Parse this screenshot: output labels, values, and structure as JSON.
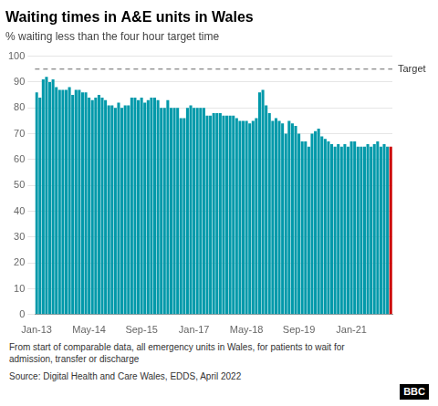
{
  "chart_data": {
    "type": "bar",
    "title": "Waiting times in A&E units in Wales",
    "subtitle": "% waiting less than the four hour target time",
    "footnote": "From start of comparable data, all emergency units in Wales, for patients to wait for\nadmission, transfer or discharge",
    "source": "Source: Digital Health and Care Wales, EDDS, April 2022",
    "logo": "BBC",
    "annotations": [
      {
        "text": "Target",
        "y": 95,
        "line_style": "dashed"
      }
    ],
    "categories": [
      "Jan-13",
      null,
      null,
      null,
      null,
      null,
      null,
      null,
      null,
      null,
      null,
      null,
      null,
      null,
      null,
      null,
      "May-14",
      null,
      null,
      null,
      null,
      null,
      null,
      null,
      null,
      null,
      null,
      null,
      null,
      null,
      null,
      null,
      "Sep-15",
      null,
      null,
      null,
      null,
      null,
      null,
      null,
      null,
      null,
      null,
      null,
      null,
      null,
      null,
      null,
      "Jan-17",
      null,
      null,
      null,
      null,
      null,
      null,
      null,
      null,
      null,
      null,
      null,
      null,
      null,
      null,
      null,
      "May-18",
      null,
      null,
      null,
      null,
      null,
      null,
      null,
      null,
      null,
      null,
      null,
      null,
      null,
      null,
      null,
      "Sep-19",
      null,
      null,
      null,
      null,
      null,
      null,
      null,
      null,
      null,
      null,
      null,
      null,
      null,
      null,
      null,
      "Jan-21",
      null,
      null,
      null,
      null,
      null,
      null,
      null,
      null,
      null,
      null,
      null,
      null
    ],
    "values": [
      86,
      84,
      91,
      92,
      90,
      91,
      88,
      87,
      87,
      87,
      88,
      85,
      87,
      87,
      86,
      86,
      84,
      83,
      84,
      85,
      84,
      83,
      81,
      81,
      80,
      82,
      80,
      81,
      81,
      84,
      84,
      83,
      84,
      82,
      83,
      84,
      84,
      83,
      80,
      80,
      83,
      80,
      80,
      80,
      76,
      76,
      80,
      81,
      80,
      80,
      80,
      80,
      77,
      77,
      78,
      78,
      78,
      77,
      77,
      77,
      77,
      76,
      75,
      75,
      75,
      74,
      75,
      76,
      86,
      87,
      81,
      78,
      75,
      76,
      75,
      74,
      70,
      75,
      74,
      73,
      70,
      67,
      67,
      65,
      70,
      71,
      72,
      69,
      68,
      67,
      66,
      65,
      66,
      65,
      66,
      65,
      67,
      67,
      65,
      65,
      65,
      66,
      65,
      66,
      67,
      65,
      66,
      65,
      65
    ],
    "colors": [
      "#0099AA",
      "#0099AA",
      "#0099AA",
      "#0099AA",
      "#0099AA",
      "#0099AA",
      "#0099AA",
      "#0099AA",
      "#0099AA",
      "#0099AA",
      "#0099AA",
      "#0099AA",
      "#0099AA",
      "#0099AA",
      "#0099AA",
      "#0099AA",
      "#0099AA",
      "#0099AA",
      "#0099AA",
      "#0099AA",
      "#0099AA",
      "#0099AA",
      "#0099AA",
      "#0099AA",
      "#0099AA",
      "#0099AA",
      "#0099AA",
      "#0099AA",
      "#0099AA",
      "#0099AA",
      "#0099AA",
      "#0099AA",
      "#0099AA",
      "#0099AA",
      "#0099AA",
      "#0099AA",
      "#0099AA",
      "#0099AA",
      "#0099AA",
      "#0099AA",
      "#0099AA",
      "#0099AA",
      "#0099AA",
      "#0099AA",
      "#0099AA",
      "#0099AA",
      "#0099AA",
      "#0099AA",
      "#0099AA",
      "#0099AA",
      "#0099AA",
      "#0099AA",
      "#0099AA",
      "#0099AA",
      "#0099AA",
      "#0099AA",
      "#0099AA",
      "#0099AA",
      "#0099AA",
      "#0099AA",
      "#0099AA",
      "#0099AA",
      "#0099AA",
      "#0099AA",
      "#0099AA",
      "#0099AA",
      "#0099AA",
      "#0099AA",
      "#0099AA",
      "#0099AA",
      "#0099AA",
      "#0099AA",
      "#0099AA",
      "#0099AA",
      "#0099AA",
      "#0099AA",
      "#0099AA",
      "#0099AA",
      "#0099AA",
      "#0099AA",
      "#0099AA",
      "#0099AA",
      "#0099AA",
      "#0099AA",
      "#0099AA",
      "#0099AA",
      "#0099AA",
      "#0099AA",
      "#0099AA",
      "#0099AA",
      "#0099AA",
      "#0099AA",
      "#0099AA",
      "#0099AA",
      "#0099AA",
      "#0099AA",
      "#0099AA",
      "#0099AA",
      "#0099AA",
      "#0099AA",
      "#0099AA",
      "#0099AA",
      "#0099AA",
      "#0099AA",
      "#0099AA",
      "#0099AA",
      "#0099AA",
      "#0099AA",
      "#CC0000"
    ],
    "ylim": [
      0,
      100
    ],
    "yticks": [
      0,
      10,
      20,
      30,
      40,
      50,
      60,
      70,
      80,
      90,
      100
    ],
    "grid": true
  }
}
